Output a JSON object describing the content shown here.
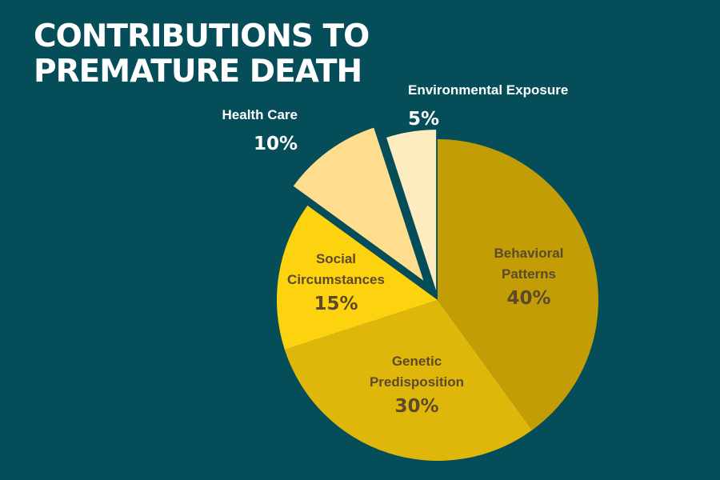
{
  "title_lines": [
    "CONTRIBUTIONS TO",
    "PREMATURE DEATH"
  ],
  "chart_data": {
    "type": "pie",
    "title": "CONTRIBUTIONS TO PREMATURE DEATH",
    "slices": [
      {
        "label": [
          "Behavioral",
          "Patterns"
        ],
        "value": 40,
        "value_label": "40%",
        "color": "#c29d06",
        "text_color": "#5c4a2a",
        "exploded": false
      },
      {
        "label": [
          "Genetic",
          "Predisposition"
        ],
        "value": 30,
        "value_label": "30%",
        "color": "#dfb70b",
        "text_color": "#5c4a2a",
        "exploded": false
      },
      {
        "label": [
          "Social",
          "Circumstances"
        ],
        "value": 15,
        "value_label": "15%",
        "color": "#fcd30e",
        "text_color": "#5c4a2a",
        "exploded": false
      },
      {
        "label": [
          "Health Care"
        ],
        "value": 10,
        "value_label": "10%",
        "color": "#fede8e",
        "text_color": "#ffffff",
        "exploded": true
      },
      {
        "label": [
          "Environmental Exposure"
        ],
        "value": 5,
        "value_label": "5%",
        "color": "#feecc1",
        "text_color": "#ffffff",
        "exploded": true
      }
    ]
  }
}
